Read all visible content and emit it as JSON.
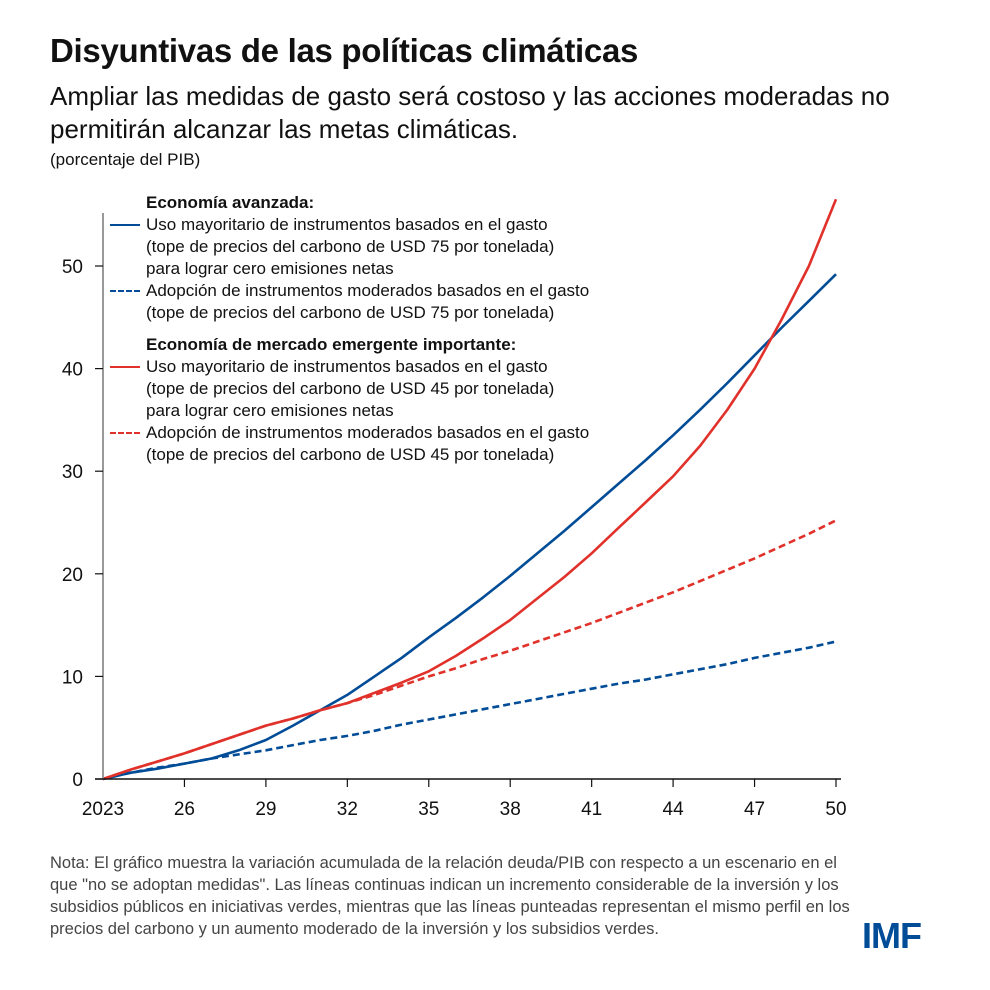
{
  "title": "Disyuntivas de las políticas climáticas",
  "subtitle": "Ampliar las medidas de gasto será costoso y las acciones moderadas no permitirán alcanzar las metas climáticas.",
  "units": "(porcentaje del PIB)",
  "legend": {
    "group1_title": "Economía avanzada:",
    "group1_items": [
      {
        "style": "solid",
        "color": "#004c97",
        "lines": [
          "Uso mayoritario de instrumentos basados en el gasto",
          "(tope de precios del carbono de USD 75 por tonelada)",
          "para lograr cero emisiones netas"
        ]
      },
      {
        "style": "dashed",
        "color": "#004c97",
        "lines": [
          "Adopción de instrumentos moderados basados en el gasto",
          "(tope de precios del carbono de USD 75 por tonelada)"
        ]
      }
    ],
    "group2_title": "Economía de mercado emergente importante:",
    "group2_items": [
      {
        "style": "solid",
        "color": "#e0312a",
        "lines": [
          "Uso mayoritario de instrumentos basados en el gasto",
          "(tope de precios del carbono de USD 45 por tonelada)",
          "para lograr cero emisiones netas"
        ]
      },
      {
        "style": "dashed",
        "color": "#e0312a",
        "lines": [
          "Adopción de instrumentos moderados basados en el gasto",
          "(tope de precios del carbono de USD 45 por tonelada)"
        ]
      }
    ]
  },
  "note": "Nota: El gráfico muestra la variación acumulada de la relación deuda/PIB con respecto a un escenario en el que \"no se adoptan medidas\". Las líneas continuas indican un incremento considerable de la inversión y los subsidios públicos en iniciativas verdes, mientras que las líneas punteadas representan el mismo perfil en los precios del carbono y un aumento moderado de la inversión y los subsidios verdes.",
  "logo": "IMF",
  "colors": {
    "blue": "#004c97",
    "red": "#e0312a",
    "axis": "#999999"
  },
  "chart_data": {
    "type": "line",
    "title": "Disyuntivas de las políticas climáticas",
    "xlabel": "",
    "ylabel": "(porcentaje del PIB)",
    "x": [
      2023,
      2024,
      2025,
      2026,
      2027,
      2028,
      2029,
      2030,
      2031,
      2032,
      2033,
      2034,
      2035,
      2036,
      2037,
      2038,
      2039,
      2040,
      2041,
      2042,
      2043,
      2044,
      2045,
      2046,
      2047,
      2048,
      2049,
      2050
    ],
    "xlim": [
      2023,
      2050
    ],
    "ylim": [
      0,
      55
    ],
    "x_ticks": [
      2023,
      2026,
      2029,
      2032,
      2035,
      2038,
      2041,
      2044,
      2047,
      2050
    ],
    "x_tick_labels": [
      "2023",
      "26",
      "29",
      "32",
      "35",
      "38",
      "41",
      "44",
      "47",
      "50"
    ],
    "y_ticks": [
      0,
      10,
      20,
      30,
      40,
      50
    ],
    "y_tick_labels": [
      "0",
      "10",
      "20",
      "30",
      "40",
      "50"
    ],
    "grid": false,
    "legend_position": "top-left",
    "series": [
      {
        "name": "Economía avanzada: Uso mayoritario de instrumentos basados en el gasto (USD 75)",
        "color": "#004c97",
        "style": "solid",
        "values": [
          0,
          0.6,
          1.0,
          1.5,
          2.0,
          2.8,
          3.8,
          5.2,
          6.7,
          8.2,
          10.0,
          11.8,
          13.8,
          15.7,
          17.7,
          19.8,
          22.0,
          24.2,
          26.5,
          28.8,
          31.1,
          33.5,
          36.0,
          38.6,
          41.3,
          44.0,
          46.6,
          49.2
        ]
      },
      {
        "name": "Economía avanzada: Adopción de instrumentos moderados basados en el gasto (USD 75)",
        "color": "#004c97",
        "style": "dashed",
        "values": [
          0,
          0.6,
          1.1,
          1.5,
          2.0,
          2.4,
          2.8,
          3.3,
          3.8,
          4.2,
          4.7,
          5.3,
          5.8,
          6.3,
          6.8,
          7.3,
          7.8,
          8.3,
          8.8,
          9.3,
          9.7,
          10.2,
          10.7,
          11.2,
          11.8,
          12.3,
          12.8,
          13.4
        ]
      },
      {
        "name": "Economía de mercado emergente importante: Uso mayoritario de instrumentos basados en el gasto (USD 45)",
        "color": "#e0312a",
        "style": "solid",
        "values": [
          0,
          0.9,
          1.7,
          2.5,
          3.4,
          4.3,
          5.2,
          5.9,
          6.7,
          7.4,
          8.4,
          9.4,
          10.5,
          12.0,
          13.7,
          15.5,
          17.6,
          19.7,
          22.0,
          24.5,
          27.0,
          29.5,
          32.5,
          36.0,
          40.0,
          44.8,
          50.0,
          56.5
        ]
      },
      {
        "name": "Economía de mercado emergente importante: Adopción de instrumentos moderados basados en el gasto (USD 45)",
        "color": "#e0312a",
        "style": "dashed",
        "values": [
          0,
          0.9,
          1.7,
          2.5,
          3.4,
          4.3,
          5.2,
          5.9,
          6.7,
          7.4,
          8.2,
          9.1,
          10.0,
          10.8,
          11.7,
          12.5,
          13.4,
          14.3,
          15.2,
          16.2,
          17.2,
          18.2,
          19.3,
          20.4,
          21.5,
          22.7,
          23.9,
          25.2
        ]
      }
    ]
  }
}
